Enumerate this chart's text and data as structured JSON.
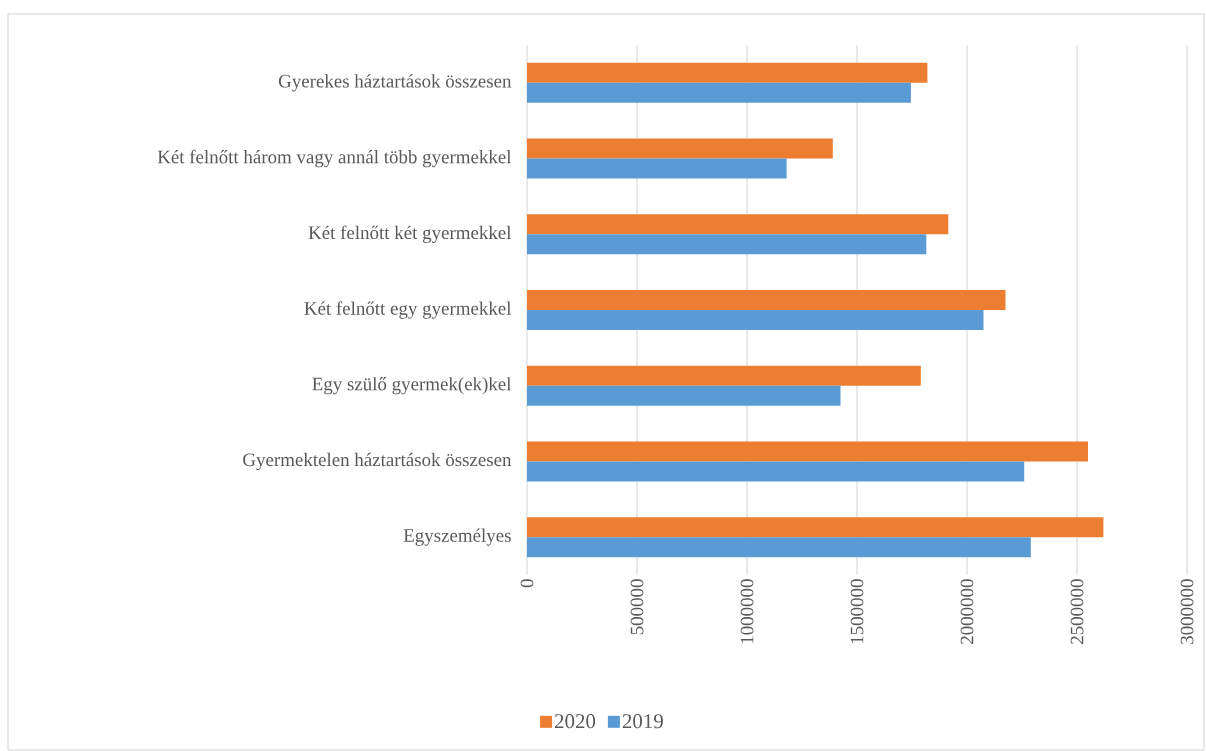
{
  "chart_data": {
    "type": "bar",
    "orientation": "horizontal",
    "categories": [
      "Gyerekes háztartások összesen",
      "Két felnőtt három vagy annál több gyermekkel",
      "Két felnőtt két gyermekkel",
      "Két felnőtt egy gyermekkel",
      "Egy szülő gyermek(ek)kel",
      "Gyermektelen háztartások összesen",
      "Egyszemélyes"
    ],
    "series": [
      {
        "name": "2020",
        "color": "#ed7d31",
        "values": [
          1820000,
          1390000,
          1915000,
          2175000,
          1790000,
          2550000,
          2620000
        ]
      },
      {
        "name": "2019",
        "color": "#5b9bd5",
        "values": [
          1745000,
          1180000,
          1815000,
          2075000,
          1425000,
          2260000,
          2290000
        ]
      }
    ],
    "xlim": [
      0,
      3000000
    ],
    "xticks": [
      0,
      500000,
      1000000,
      1500000,
      2000000,
      2500000,
      3000000
    ],
    "grid": "x",
    "legend": "bottom"
  }
}
